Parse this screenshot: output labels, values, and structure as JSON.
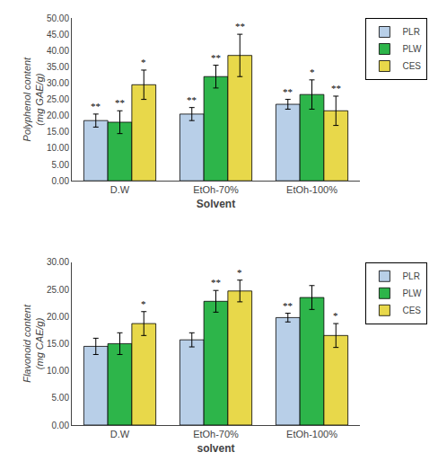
{
  "chart_data": [
    {
      "type": "bar",
      "xlabel": "Solvent",
      "ylabel": "Polyphenol content\n(mg GAE/g)",
      "categories": [
        "D.W",
        "EtOh-70%",
        "EtOh-100%"
      ],
      "ylim": [
        0,
        50
      ],
      "yticks": [
        {
          "value": 0,
          "label": "0.00"
        },
        {
          "value": 5,
          "label": "5.00"
        },
        {
          "value": 10,
          "label": "10.00"
        },
        {
          "value": 15,
          "label": "15.00"
        },
        {
          "value": 20,
          "label": "20.00"
        },
        {
          "value": 25,
          "label": "25.00"
        },
        {
          "value": 30,
          "label": "30.00"
        },
        {
          "value": 35,
          "label": "35.00"
        },
        {
          "value": 40,
          "label": "40.00"
        },
        {
          "value": 45,
          "label": "45.00"
        },
        {
          "value": 50,
          "label": "50.00"
        }
      ],
      "grid": false,
      "legend": "upper right",
      "series": [
        {
          "name": "PLR",
          "color": "#b8cfe8",
          "values": [
            18.5,
            20.5,
            23.5
          ],
          "errors": [
            2.0,
            2.0,
            1.5
          ],
          "significance": [
            "**",
            "**",
            "**"
          ]
        },
        {
          "name": "PLW",
          "color": "#2db54a",
          "values": [
            18.0,
            32.0,
            26.5
          ],
          "errors": [
            3.5,
            3.5,
            4.5
          ],
          "significance": [
            "**",
            "**",
            "*"
          ]
        },
        {
          "name": "CES",
          "color": "#e8d84a",
          "values": [
            29.5,
            38.5,
            21.5
          ],
          "errors": [
            4.5,
            6.5,
            4.5
          ],
          "significance": [
            "*",
            "**",
            "**"
          ]
        }
      ]
    },
    {
      "type": "bar",
      "xlabel": "solvent",
      "ylabel": "Flavonoid content\n(mg CAE/g)",
      "categories": [
        "D.W",
        "EtOh-70%",
        "EtOh-100%"
      ],
      "ylim": [
        0,
        30
      ],
      "yticks": [
        {
          "value": 0,
          "label": "0.00"
        },
        {
          "value": 5,
          "label": "5.00"
        },
        {
          "value": 10,
          "label": "10.00"
        },
        {
          "value": 15,
          "label": "15.00"
        },
        {
          "value": 20,
          "label": "20.00"
        },
        {
          "value": 25,
          "label": "25.00"
        },
        {
          "value": 30,
          "label": "30.00"
        }
      ],
      "grid": false,
      "legend": "upper right",
      "series": [
        {
          "name": "PLR",
          "color": "#b8cfe8",
          "values": [
            14.5,
            15.7,
            19.8
          ],
          "errors": [
            1.5,
            1.3,
            0.8
          ],
          "significance": [
            null,
            null,
            "**"
          ]
        },
        {
          "name": "PLW",
          "color": "#2db54a",
          "values": [
            15.0,
            22.8,
            23.5
          ],
          "errors": [
            2.0,
            2.0,
            2.2
          ],
          "significance": [
            null,
            "**",
            null
          ]
        },
        {
          "name": "CES",
          "color": "#e8d84a",
          "values": [
            18.7,
            24.7,
            16.5
          ],
          "errors": [
            2.2,
            2.0,
            2.2
          ],
          "significance": [
            "*",
            "*",
            "*"
          ]
        }
      ]
    }
  ]
}
